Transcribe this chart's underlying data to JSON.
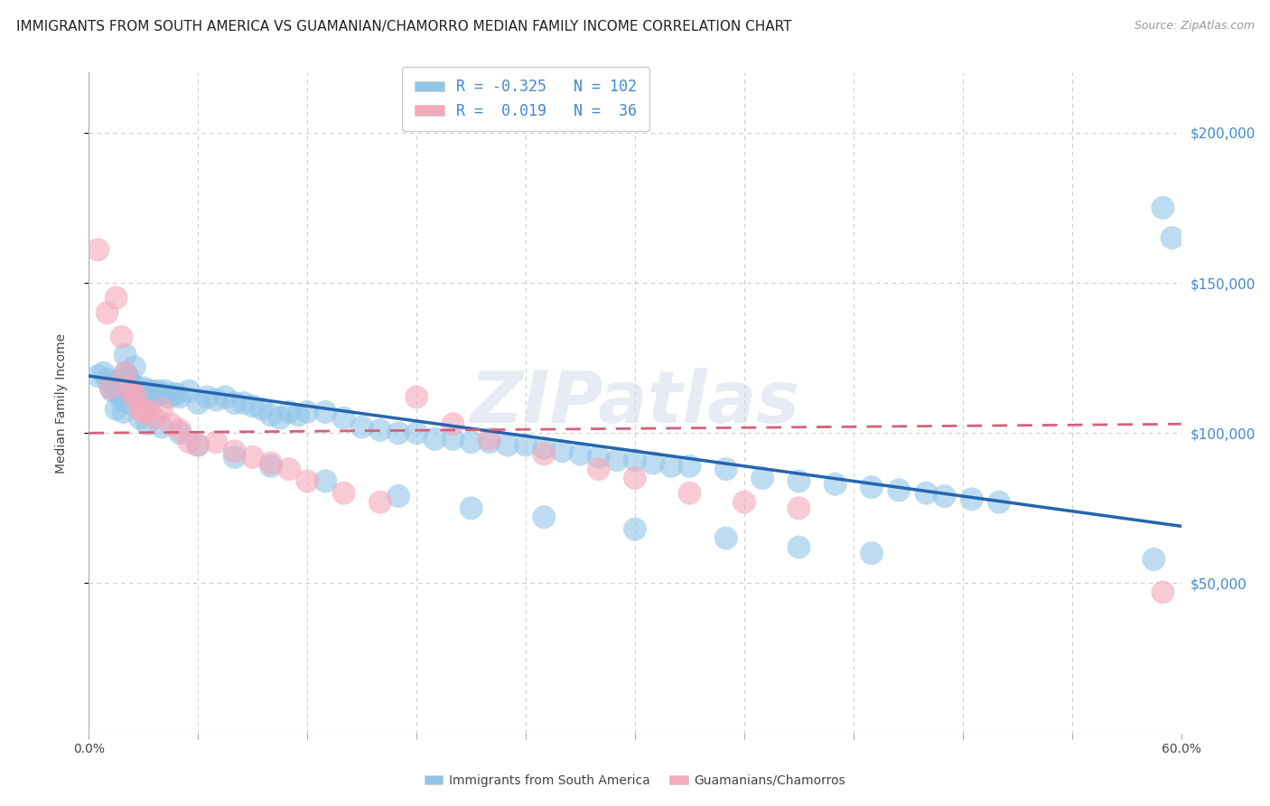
{
  "title": "IMMIGRANTS FROM SOUTH AMERICA VS GUAMANIAN/CHAMORRO MEDIAN FAMILY INCOME CORRELATION CHART",
  "source": "Source: ZipAtlas.com",
  "ylabel": "Median Family Income",
  "xlim": [
    0.0,
    0.6
  ],
  "ylim": [
    0,
    220000
  ],
  "yticks": [
    50000,
    100000,
    150000,
    200000
  ],
  "ytick_labels": [
    "$50,000",
    "$100,000",
    "$150,000",
    "$200,000"
  ],
  "xticks": [
    0.0,
    0.06,
    0.12,
    0.18,
    0.24,
    0.3,
    0.36,
    0.42,
    0.48,
    0.54,
    0.6
  ],
  "xtick_labels": [
    "0.0%",
    "",
    "",
    "",
    "",
    "",
    "",
    "",
    "",
    "",
    "60.0%"
  ],
  "color_blue": "#92C5E8",
  "color_pink": "#F4A8BB",
  "line_blue": "#2565AE",
  "line_pink": "#D4607A",
  "watermark": "ZIPatlas",
  "title_fontsize": 11,
  "axis_label_fontsize": 10,
  "tick_fontsize": 10,
  "blue_scatter_x": [
    0.005,
    0.008,
    0.01,
    0.012,
    0.013,
    0.014,
    0.015,
    0.016,
    0.017,
    0.018,
    0.02,
    0.021,
    0.022,
    0.023,
    0.024,
    0.025,
    0.026,
    0.027,
    0.028,
    0.03,
    0.031,
    0.032,
    0.033,
    0.034,
    0.035,
    0.036,
    0.038,
    0.04,
    0.042,
    0.044,
    0.046,
    0.048,
    0.05,
    0.055,
    0.06,
    0.065,
    0.07,
    0.075,
    0.08,
    0.085,
    0.09,
    0.095,
    0.1,
    0.105,
    0.11,
    0.115,
    0.12,
    0.13,
    0.14,
    0.15,
    0.16,
    0.17,
    0.18,
    0.19,
    0.2,
    0.21,
    0.22,
    0.23,
    0.24,
    0.25,
    0.26,
    0.27,
    0.28,
    0.29,
    0.3,
    0.31,
    0.32,
    0.33,
    0.35,
    0.37,
    0.39,
    0.41,
    0.43,
    0.445,
    0.46,
    0.47,
    0.485,
    0.5,
    0.02,
    0.025,
    0.018,
    0.022,
    0.015,
    0.019,
    0.028,
    0.032,
    0.04,
    0.05,
    0.06,
    0.08,
    0.1,
    0.13,
    0.17,
    0.21,
    0.25,
    0.3,
    0.35,
    0.39,
    0.43,
    0.585,
    0.59,
    0.595
  ],
  "blue_scatter_y": [
    119000,
    120000,
    118000,
    115000,
    114000,
    117000,
    116000,
    115000,
    113000,
    114000,
    120000,
    119000,
    118000,
    115000,
    116000,
    114000,
    113000,
    115000,
    113000,
    115000,
    112000,
    113000,
    114000,
    113000,
    114000,
    112000,
    114000,
    113000,
    114000,
    112000,
    113000,
    113000,
    112000,
    114000,
    110000,
    112000,
    111000,
    112000,
    110000,
    110000,
    109000,
    108000,
    106000,
    105000,
    107000,
    106000,
    107000,
    107000,
    105000,
    102000,
    101000,
    100000,
    100000,
    98000,
    98000,
    97000,
    97000,
    96000,
    96000,
    95000,
    94000,
    93000,
    92000,
    91000,
    91000,
    90000,
    89000,
    89000,
    88000,
    85000,
    84000,
    83000,
    82000,
    81000,
    80000,
    79000,
    78000,
    77000,
    126000,
    122000,
    111000,
    110000,
    108000,
    107000,
    105000,
    103000,
    102000,
    100000,
    96000,
    92000,
    89000,
    84000,
    79000,
    75000,
    72000,
    68000,
    65000,
    62000,
    60000,
    58000,
    175000,
    165000
  ],
  "pink_scatter_x": [
    0.005,
    0.01,
    0.012,
    0.015,
    0.018,
    0.02,
    0.022,
    0.024,
    0.026,
    0.028,
    0.03,
    0.033,
    0.036,
    0.04,
    0.045,
    0.05,
    0.055,
    0.06,
    0.07,
    0.08,
    0.09,
    0.1,
    0.11,
    0.12,
    0.14,
    0.16,
    0.18,
    0.2,
    0.22,
    0.25,
    0.28,
    0.3,
    0.33,
    0.36,
    0.39,
    0.59
  ],
  "pink_scatter_y": [
    161000,
    140000,
    115000,
    145000,
    132000,
    120000,
    115000,
    113000,
    112000,
    108000,
    107000,
    107000,
    105000,
    108000,
    103000,
    101000,
    97000,
    96000,
    97000,
    94000,
    92000,
    90000,
    88000,
    84000,
    80000,
    77000,
    112000,
    103000,
    98000,
    93000,
    88000,
    85000,
    80000,
    77000,
    75000,
    47000
  ],
  "blue_line_x": [
    0.0,
    0.6
  ],
  "blue_line_y": [
    119000,
    69000
  ],
  "pink_line_x": [
    0.0,
    0.6
  ],
  "pink_line_y": [
    100000,
    103000
  ],
  "background_color": "#ffffff",
  "grid_color": "#cccccc",
  "tick_color_right": "#4488CC",
  "legend_label1": "R = -0.325   N = 102",
  "legend_label2": "R =  0.019   N =  36"
}
